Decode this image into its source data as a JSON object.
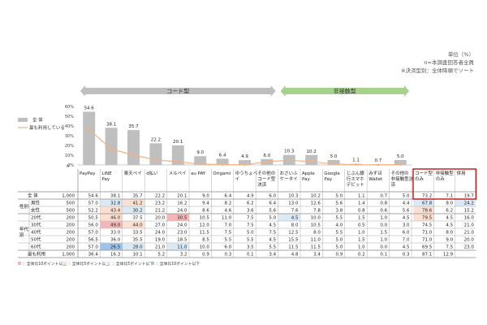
{
  "notes": {
    "unit": "単位（%）",
    "n": "n=本調査回答者全員",
    "sort": "※決済型別：全体降順でソート"
  },
  "groups": {
    "code": "コード型",
    "contactless": "非接触型"
  },
  "legend": {
    "total": "全 体",
    "most_used": "最も利用している"
  },
  "n_label": "n",
  "bottom_legend": [
    "■：全体比10ポイント以上",
    "■：全体比5ポイント以上",
    "■：全体比5ポイント以下",
    "■：全体比10ポイント以下"
  ],
  "colors": {
    "bar": "#bfbfbf",
    "line": "#f4b183",
    "code_band": "#bfbfbf",
    "contactless_band": "#a9d18e",
    "highlight_red": "#c00000",
    "plus10": "#f4b6b6",
    "plus5": "#fbe0d2",
    "minus5": "#dae9f6",
    "minus10": "#9dc3e6"
  },
  "chart_data": {
    "type": "bar",
    "categories": [
      "PayPay",
      "LINE Pay",
      "楽天ペイ",
      "d払い",
      "メルペイ",
      "au PAY",
      "Origami",
      "ゆうちょPay",
      "その他のコード型決済",
      "おさいふケータイ",
      "Apple Pay",
      "Google Pay",
      "じぶん銀行スマホデビット",
      "みずほWallet",
      "その他の非接触型決済"
    ],
    "category_lines": [
      [
        "PayPay"
      ],
      [
        "LINE",
        "Pay"
      ],
      [
        "楽天ペイ"
      ],
      [
        "d払い"
      ],
      [
        "メルペイ"
      ],
      [
        "au PAY"
      ],
      [
        "Origami"
      ],
      [
        "ゆうちょペ",
        "イ"
      ],
      [
        "その他の",
        "コード型",
        "決済"
      ],
      [
        "おさいふ",
        "ケータイ"
      ],
      [
        "Apple",
        "Pay"
      ],
      [
        "Google",
        "Pay"
      ],
      [
        "じぶん銀",
        "行スマホ",
        "デビット"
      ],
      [
        "みずほ",
        "Wallet"
      ],
      [
        "その他の",
        "非接触型決",
        "済"
      ]
    ],
    "series": [
      {
        "name": "全 体",
        "type": "bar",
        "values": [
          54.6,
          38.1,
          35.7,
          22.2,
          20.1,
          9.0,
          6.4,
          4.9,
          6.0,
          10.3,
          10.2,
          5.0,
          1.1,
          0.7,
          5.0
        ]
      },
      {
        "name": "最も利用している",
        "type": "line",
        "values": [
          36.4,
          16.3,
          10.1,
          5.2,
          3.2,
          0.9,
          0.3,
          0.1,
          3.4,
          4.8,
          3.4,
          0.9,
          0.2,
          0.1,
          0.3
        ]
      }
    ],
    "ylim": [
      0,
      60
    ],
    "yticks": [
      "0%",
      "10%",
      "20%",
      "30%",
      "40%",
      "50%",
      "60%"
    ],
    "extra_columns": [
      "コード型のみ",
      "非接触型のみ",
      "併用"
    ],
    "extra_lines": [
      [
        "コード型",
        "のみ"
      ],
      [
        "非接触型",
        "のみ"
      ],
      [
        "併用"
      ]
    ],
    "table": {
      "rows": [
        {
          "group": "",
          "label": "全 体",
          "n": "1,000",
          "values": [
            "54.6",
            "38.1",
            "35.7",
            "22.2",
            "20.1",
            "9.0",
            "6.4",
            "4.9",
            "6.0",
            "10.3",
            "10.2",
            "5.0",
            "1.1",
            "0.7",
            "5.0",
            "73.2",
            "7.1",
            "19.7"
          ]
        },
        {
          "group": "性別",
          "label": "男性",
          "n": "500",
          "values": [
            "57.0",
            "32.8",
            "41.2",
            "23.2",
            "16.2",
            "9.4",
            "8.2",
            "6.2",
            "6.4",
            "13.0",
            "12.6",
            "5.6",
            "1.4",
            "0.8",
            "4.4",
            "67.8",
            "8.0",
            "24.2"
          ]
        },
        {
          "group": "性別",
          "label": "女性",
          "n": "500",
          "values": [
            "52.2",
            "43.4",
            "30.2",
            "21.2",
            "24.0",
            "8.6",
            "4.6",
            "3.6",
            "5.6",
            "7.6",
            "7.8",
            "3.8",
            "0.8",
            "0.6",
            "5.6",
            "78.6",
            "6.2",
            "15.2"
          ]
        },
        {
          "group": "年代別",
          "label": "20代",
          "n": "200",
          "values": [
            "50.5",
            "46.0",
            "37.5",
            "20.0",
            "30.5",
            "10.5",
            "11.0",
            "7.5",
            "5.0",
            "4.5",
            "10.0",
            "5.5",
            "1.5",
            "1.0",
            "4.5",
            "79.5",
            "4.5",
            "16.0"
          ]
        },
        {
          "group": "年代別",
          "label": "30代",
          "n": "200",
          "values": [
            "56.0",
            "49.0",
            "44.0",
            "27.0",
            "24.0",
            "12.0",
            "7.0",
            "7.5",
            "4.5",
            "8.0",
            "10.5",
            "4.0",
            "0.5",
            "0.0",
            "3.0",
            "74.5",
            "4.5",
            "21.0"
          ]
        },
        {
          "group": "年代別",
          "label": "40代",
          "n": "200",
          "values": [
            "57.0",
            "33.0",
            "33.5",
            "24.0",
            "23.0",
            "11.5",
            "7.5",
            "5.0",
            "7.5",
            "12.5",
            "8.0",
            "5.5",
            "1.0",
            "1.5",
            "6.0",
            "71.0",
            "8.0",
            "21.0"
          ]
        },
        {
          "group": "年代別",
          "label": "50代",
          "n": "200",
          "values": [
            "56.5",
            "36.0",
            "35.5",
            "19.0",
            "18.5",
            "8.5",
            "5.5",
            "5.5",
            "4.5",
            "15.5",
            "11.0",
            "5.0",
            "1.5",
            "1.0",
            "7.0",
            "71.0",
            "9.0",
            "20.0"
          ]
        },
        {
          "group": "年代別",
          "label": "60代",
          "n": "200",
          "values": [
            "57.0",
            "26.5",
            "28.0",
            "21.0",
            "11.0",
            "10.0",
            "6.0",
            "3.5",
            "5.5",
            "11.5",
            "11.5",
            "5.0",
            "1.0",
            "0.0",
            "4.5",
            "69.5",
            "7.5",
            "23.0"
          ]
        },
        {
          "group": "",
          "label": "最も利用",
          "n": "1,000",
          "values": [
            "36.4",
            "16.3",
            "10.1",
            "5.2",
            "3.2",
            "0.9",
            "0.3",
            "0.1",
            "3.4",
            "4.8",
            "3.4",
            "0.9",
            "0.2",
            "0.1",
            "0.3",
            "87.1",
            "12.9",
            ""
          ]
        }
      ],
      "highlights": [
        {
          "row": 1,
          "col": 1,
          "level": "minus5"
        },
        {
          "row": 1,
          "col": 2,
          "level": "plus5"
        },
        {
          "row": 1,
          "col": 15,
          "level": "minus5"
        },
        {
          "row": 1,
          "col": 17,
          "level": "minus5"
        },
        {
          "row": 2,
          "col": 1,
          "level": "plus5"
        },
        {
          "row": 2,
          "col": 2,
          "level": "minus5"
        },
        {
          "row": 2,
          "col": 15,
          "level": "plus5"
        },
        {
          "row": 3,
          "col": 1,
          "level": "plus5"
        },
        {
          "row": 3,
          "col": 4,
          "level": "plus10"
        },
        {
          "row": 3,
          "col": 9,
          "level": "minus5"
        },
        {
          "row": 3,
          "col": 15,
          "level": "plus5"
        },
        {
          "row": 4,
          "col": 1,
          "level": "plus10"
        },
        {
          "row": 4,
          "col": 2,
          "level": "plus5"
        },
        {
          "row": 7,
          "col": 1,
          "level": "minus10"
        },
        {
          "row": 7,
          "col": 2,
          "level": "minus5"
        },
        {
          "row": 7,
          "col": 4,
          "level": "minus5"
        }
      ]
    }
  }
}
